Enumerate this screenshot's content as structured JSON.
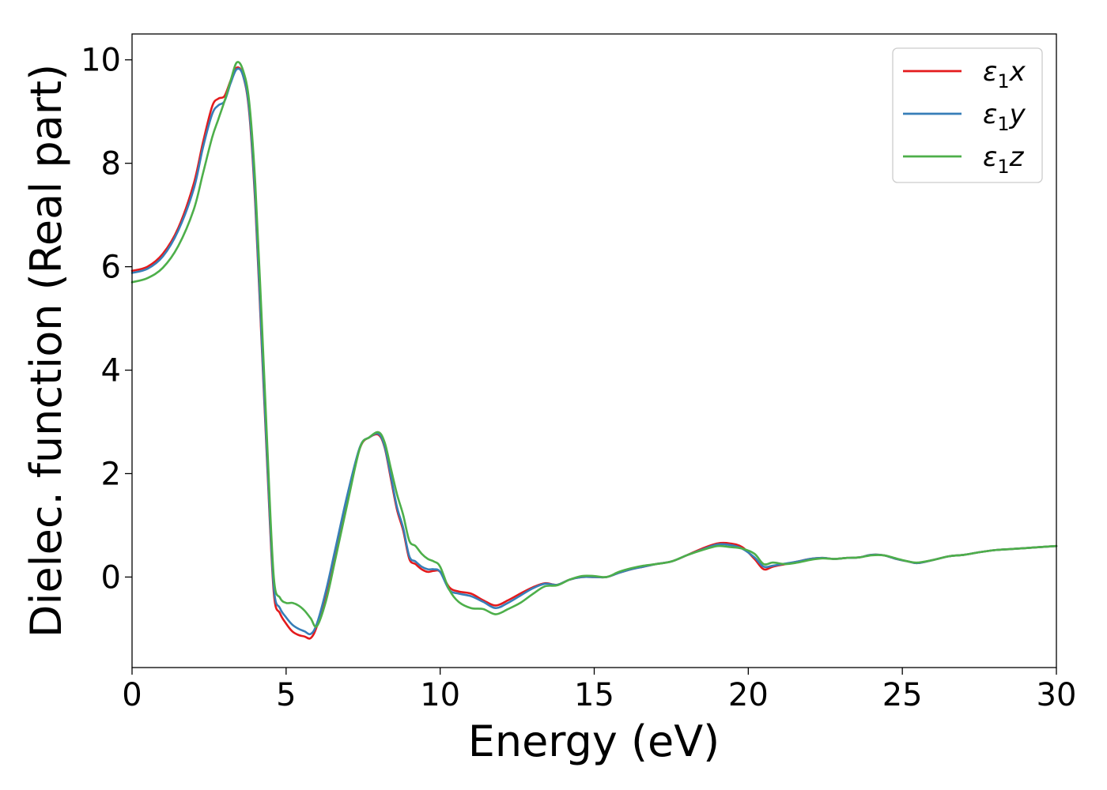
{
  "chart_data": {
    "type": "line",
    "title": "",
    "xlabel": "Energy (eV)",
    "ylabel": "Dielec. function (Real part)",
    "xlim": [
      0,
      30
    ],
    "ylim": [
      -1.75,
      10.5
    ],
    "xticks": [
      "0",
      "5",
      "10",
      "15",
      "20",
      "25",
      "30"
    ],
    "yticks": [
      "0",
      "2",
      "4",
      "6",
      "8",
      "10"
    ],
    "grid": false,
    "legend_position": "top-right",
    "x": [
      0,
      0.5,
      1.0,
      1.5,
      2.0,
      2.3,
      2.6,
      2.8,
      3.0,
      3.2,
      3.4,
      3.6,
      3.8,
      4.0,
      4.2,
      4.4,
      4.6,
      4.8,
      5.0,
      5.2,
      5.4,
      5.6,
      5.8,
      6.0,
      6.3,
      6.6,
      7.0,
      7.4,
      7.7,
      8.0,
      8.2,
      8.4,
      8.6,
      8.8,
      9.0,
      9.2,
      9.4,
      9.6,
      9.8,
      10.0,
      10.3,
      10.6,
      11.0,
      11.4,
      11.8,
      12.2,
      12.6,
      13.0,
      13.4,
      13.8,
      14.2,
      14.6,
      15.0,
      15.4,
      15.8,
      16.2,
      16.6,
      17.0,
      17.5,
      18.0,
      18.5,
      19.0,
      19.4,
      19.8,
      20.2,
      20.5,
      20.8,
      21.2,
      21.6,
      22.0,
      22.4,
      22.8,
      23.2,
      23.6,
      24.0,
      24.4,
      24.8,
      25.2,
      25.5,
      26.0,
      26.5,
      27.0,
      27.5,
      28.0,
      28.5,
      29.0,
      29.5,
      30.0
    ],
    "series": [
      {
        "name": "ε₁x",
        "name_base": "ε",
        "name_sub": "1",
        "name_var": "x",
        "color": "#e41a1c",
        "values": [
          5.92,
          6.0,
          6.25,
          6.75,
          7.6,
          8.4,
          9.1,
          9.25,
          9.3,
          9.6,
          9.85,
          9.7,
          9.0,
          7.2,
          4.6,
          2.0,
          -0.3,
          -0.7,
          -0.9,
          -1.05,
          -1.12,
          -1.15,
          -1.18,
          -0.95,
          -0.3,
          0.5,
          1.6,
          2.5,
          2.7,
          2.75,
          2.5,
          1.9,
          1.3,
          0.9,
          0.35,
          0.25,
          0.15,
          0.1,
          0.12,
          0.1,
          -0.2,
          -0.28,
          -0.32,
          -0.45,
          -0.55,
          -0.45,
          -0.32,
          -0.2,
          -0.12,
          -0.15,
          -0.05,
          0.0,
          0.0,
          0.0,
          0.08,
          0.15,
          0.2,
          0.25,
          0.3,
          0.42,
          0.55,
          0.65,
          0.65,
          0.58,
          0.35,
          0.15,
          0.2,
          0.25,
          0.3,
          0.35,
          0.37,
          0.35,
          0.37,
          0.38,
          0.43,
          0.42,
          0.35,
          0.3,
          0.27,
          0.33,
          0.4,
          0.43,
          0.48,
          0.52,
          0.54,
          0.56,
          0.58,
          0.6
        ]
      },
      {
        "name": "ε₁y",
        "name_base": "ε",
        "name_sub": "1",
        "name_var": "y",
        "color": "#377eb8",
        "values": [
          5.88,
          5.96,
          6.2,
          6.7,
          7.5,
          8.3,
          8.95,
          9.12,
          9.2,
          9.55,
          9.82,
          9.7,
          9.05,
          7.3,
          4.7,
          2.1,
          -0.2,
          -0.6,
          -0.78,
          -0.92,
          -1.0,
          -1.05,
          -1.1,
          -0.9,
          -0.25,
          0.55,
          1.62,
          2.52,
          2.7,
          2.77,
          2.52,
          1.95,
          1.35,
          0.95,
          0.4,
          0.3,
          0.2,
          0.15,
          0.15,
          0.1,
          -0.25,
          -0.32,
          -0.37,
          -0.48,
          -0.6,
          -0.5,
          -0.36,
          -0.22,
          -0.13,
          -0.15,
          -0.05,
          0.0,
          0.0,
          0.0,
          0.08,
          0.15,
          0.2,
          0.25,
          0.3,
          0.42,
          0.53,
          0.63,
          0.62,
          0.55,
          0.38,
          0.2,
          0.22,
          0.26,
          0.3,
          0.35,
          0.37,
          0.35,
          0.37,
          0.38,
          0.43,
          0.42,
          0.35,
          0.3,
          0.27,
          0.33,
          0.4,
          0.43,
          0.48,
          0.52,
          0.54,
          0.56,
          0.58,
          0.6
        ]
      },
      {
        "name": "ε₁z",
        "name_base": "ε",
        "name_sub": "1",
        "name_var": "z",
        "color": "#4daf4a",
        "values": [
          5.7,
          5.78,
          5.98,
          6.4,
          7.1,
          7.8,
          8.5,
          8.85,
          9.2,
          9.6,
          9.95,
          9.8,
          9.2,
          7.6,
          5.1,
          2.4,
          0.0,
          -0.4,
          -0.5,
          -0.5,
          -0.55,
          -0.65,
          -0.8,
          -0.95,
          -0.45,
          0.35,
          1.45,
          2.5,
          2.7,
          2.8,
          2.6,
          2.1,
          1.6,
          1.2,
          0.7,
          0.6,
          0.45,
          0.35,
          0.3,
          0.2,
          -0.25,
          -0.48,
          -0.6,
          -0.62,
          -0.72,
          -0.62,
          -0.5,
          -0.33,
          -0.18,
          -0.16,
          -0.05,
          0.02,
          0.02,
          0.0,
          0.1,
          0.17,
          0.22,
          0.25,
          0.3,
          0.42,
          0.52,
          0.6,
          0.58,
          0.55,
          0.45,
          0.25,
          0.28,
          0.25,
          0.28,
          0.33,
          0.36,
          0.35,
          0.37,
          0.38,
          0.42,
          0.42,
          0.36,
          0.3,
          0.28,
          0.33,
          0.4,
          0.43,
          0.48,
          0.52,
          0.54,
          0.56,
          0.58,
          0.6
        ]
      }
    ]
  }
}
